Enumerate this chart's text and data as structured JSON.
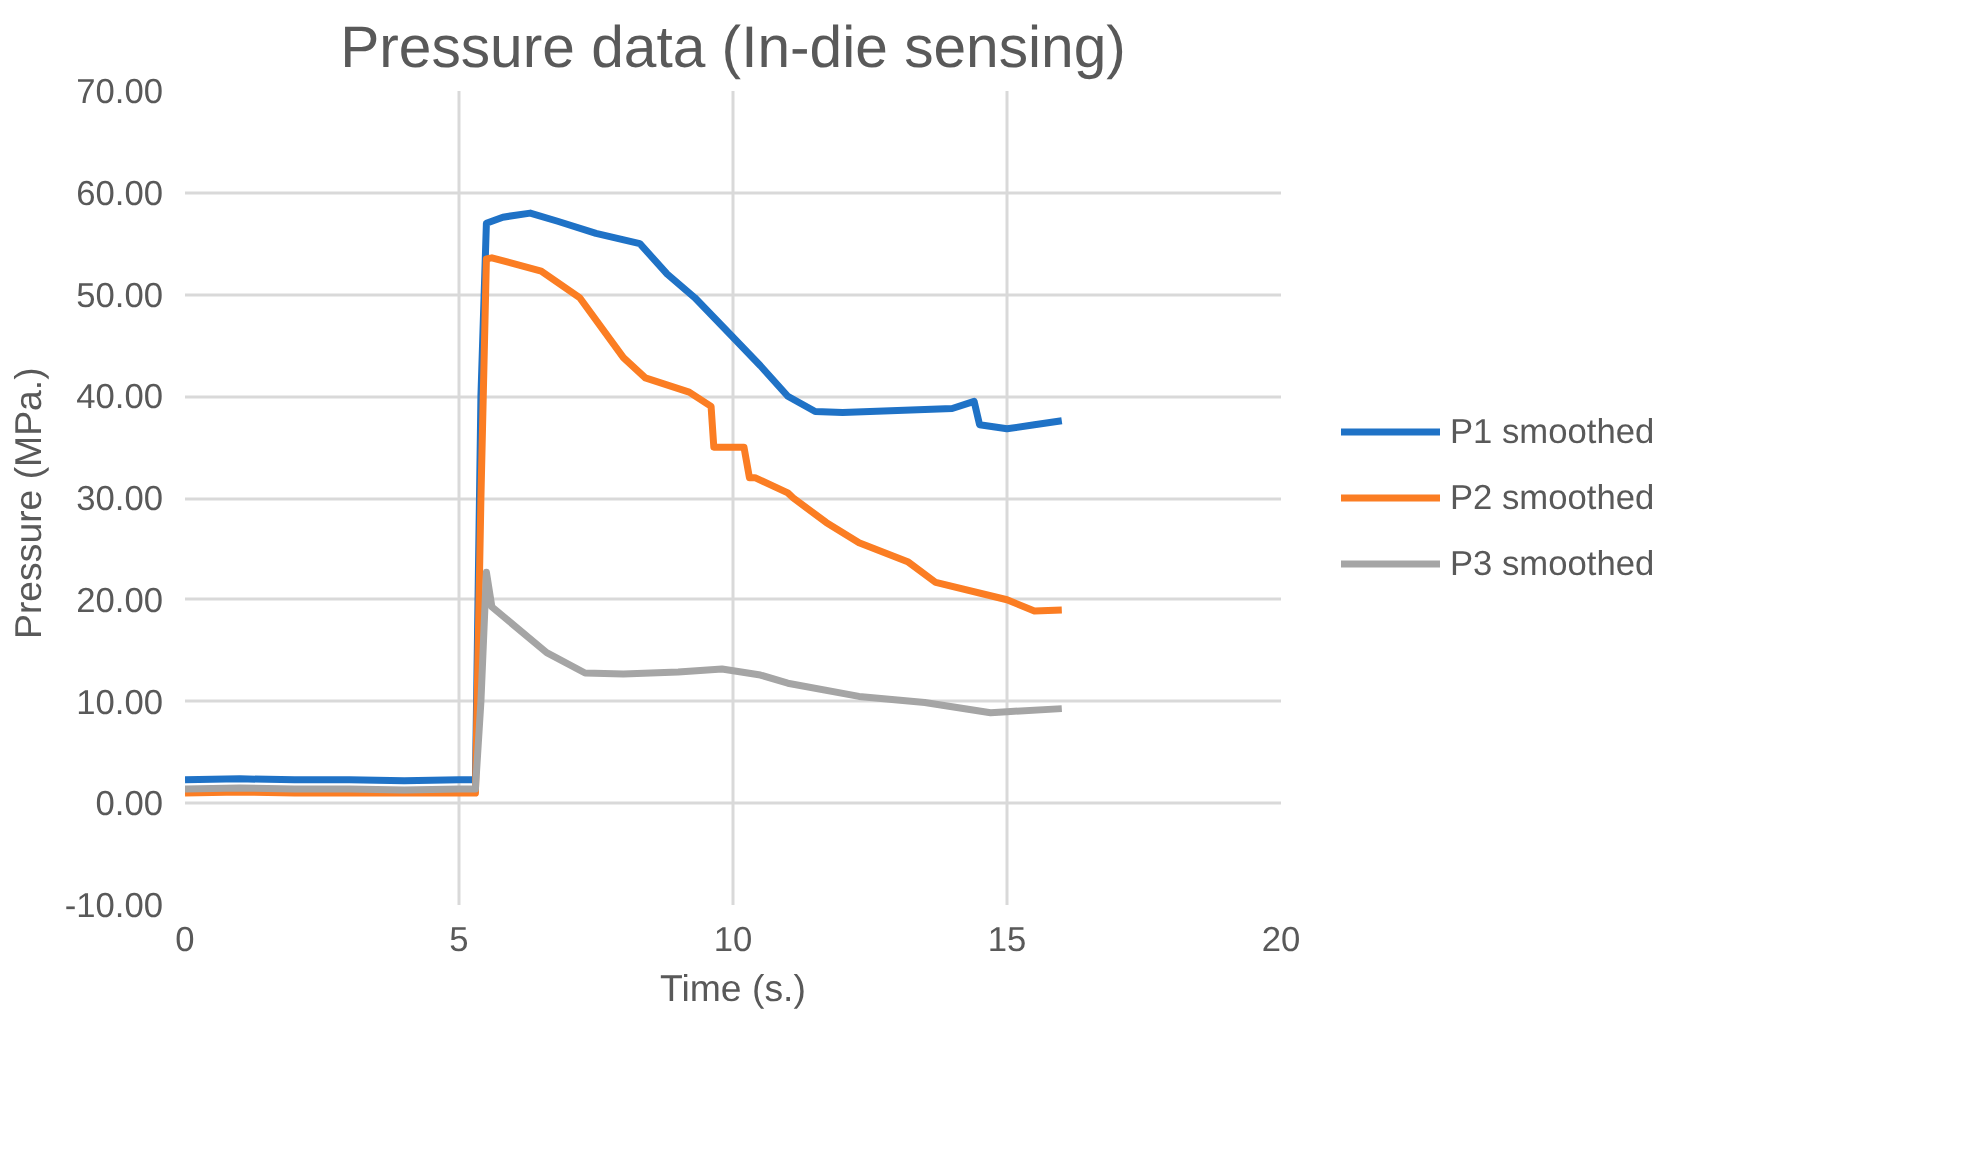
{
  "chart_data": {
    "type": "line",
    "title": "Pressure data (In-die sensing)",
    "xlabel": "Time (s.)",
    "ylabel": "Pressure  (MPa.)",
    "xlim": [
      0,
      20
    ],
    "xticks": [
      0,
      5,
      10,
      15,
      20
    ],
    "ylim": [
      -10,
      70
    ],
    "yticks": [
      {
        "value": -10,
        "label": "-10.00"
      },
      {
        "value": 0,
        "label": "0.00"
      },
      {
        "value": 10,
        "label": "10.00"
      },
      {
        "value": 20,
        "label": "20.00"
      },
      {
        "value": 30,
        "label": "30.00"
      },
      {
        "value": 40,
        "label": "40.00"
      },
      {
        "value": 50,
        "label": "50.00"
      },
      {
        "value": 60,
        "label": "60.00"
      },
      {
        "value": 70,
        "label": "70.00"
      }
    ],
    "grid": true,
    "legend": "right",
    "marker": "none",
    "line_style": "solid",
    "series": [
      {
        "name": "P1 smoothed",
        "color": "#1f72c6",
        "x": [
          0,
          1,
          2,
          3,
          4,
          5,
          5.3,
          5.4,
          5.5,
          5.8,
          6.3,
          6.8,
          7.5,
          8.3,
          8.8,
          9.3,
          10,
          10.5,
          11,
          11.5,
          12,
          13,
          14,
          14.4,
          14.5,
          15,
          15.5,
          16
        ],
        "values": [
          2.3,
          2.4,
          2.3,
          2.3,
          2.2,
          2.3,
          2.3,
          40,
          57,
          57.6,
          58,
          57.2,
          56,
          55,
          52,
          49.7,
          45.8,
          43,
          40,
          38.5,
          38.4,
          38.6,
          38.8,
          39.5,
          37.2,
          36.8,
          37.2,
          37.6
        ]
      },
      {
        "name": "P2 smoothed",
        "color": "#fb7d23",
        "x": [
          0,
          1,
          2,
          3,
          4,
          5,
          5.3,
          5.4,
          5.5,
          5.6,
          6.5,
          7.2,
          8,
          8.4,
          9.2,
          9.6,
          9.65,
          10.2,
          10.3,
          10.4,
          11,
          11.1,
          11.7,
          12.3,
          13.2,
          13.7,
          15,
          15.5,
          16
        ],
        "values": [
          1,
          1.1,
          1,
          1,
          1,
          1,
          1,
          30,
          53.5,
          53.6,
          52.3,
          49.7,
          43.8,
          41.8,
          40.4,
          39,
          35,
          35,
          32,
          32,
          30.5,
          30,
          27.6,
          25.6,
          23.7,
          21.7,
          20,
          18.9,
          19
        ]
      },
      {
        "name": "P3 smoothed",
        "color": "#a5a5a5",
        "x": [
          0,
          1,
          2,
          3,
          4,
          5,
          5.3,
          5.4,
          5.5,
          5.6,
          6.6,
          7.3,
          8,
          9,
          9.8,
          10.5,
          11,
          12.3,
          13.5,
          14.7,
          15,
          16
        ],
        "values": [
          1.4,
          1.5,
          1.4,
          1.4,
          1.3,
          1.4,
          1.4,
          10,
          22.7,
          19.3,
          14.8,
          12.8,
          12.7,
          12.9,
          13.2,
          12.6,
          11.8,
          10.5,
          9.9,
          8.9,
          9,
          9.3
        ]
      }
    ]
  }
}
